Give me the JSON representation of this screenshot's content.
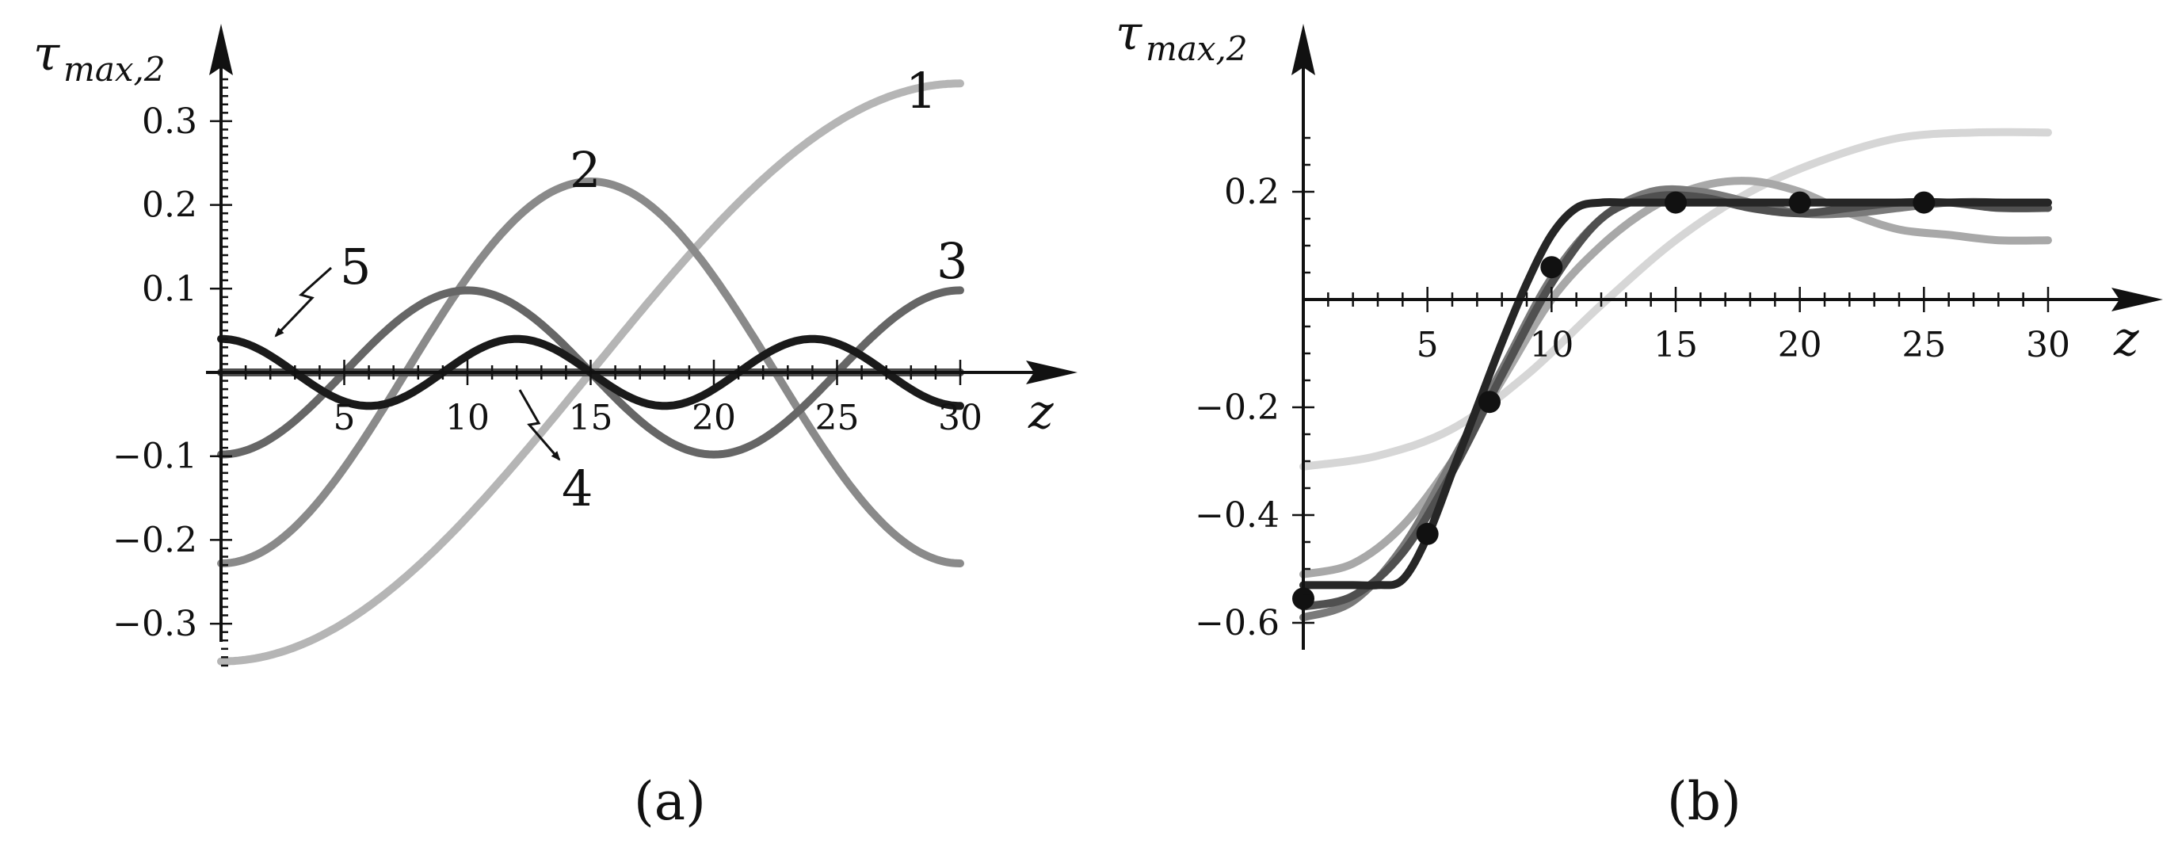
{
  "chart_data": [
    {
      "id": "a",
      "type": "line",
      "caption": "(a)",
      "ylabel": "τ",
      "ylabel_sub": "max,2",
      "xlabel": "z",
      "xlim": [
        0,
        30
      ],
      "ylim": [
        -0.35,
        0.35
      ],
      "x_ticks": [
        "5",
        "10",
        "15",
        "20",
        "25",
        "30"
      ],
      "y_ticks": [
        "0.3",
        "0.2",
        "0.1",
        "−0.1",
        "−0.2",
        "−0.3"
      ],
      "y_tick_values": [
        0.3,
        0.2,
        0.1,
        -0.1,
        -0.2,
        -0.3
      ],
      "x_tick_values": [
        5,
        10,
        15,
        20,
        25,
        30
      ],
      "series": [
        {
          "name": "1",
          "color": "#b5b5b5",
          "amplitude": -0.345,
          "cycles": 0.5,
          "phase": 0
        },
        {
          "name": "2",
          "color": "#8a8a8a",
          "amplitude": -0.228,
          "cycles": 1.0,
          "phase": 0
        },
        {
          "name": "3",
          "color": "#666666",
          "amplitude": -0.098,
          "cycles": 1.5,
          "phase": 0
        },
        {
          "name": "4",
          "color": "#4d4d4d",
          "amplitude": 0.0,
          "cycles": 2.0,
          "phase": 0
        },
        {
          "name": "5",
          "color": "#1a1a1a",
          "amplitude": 0.04,
          "cycles": 2.5,
          "phase": 0
        }
      ],
      "annotations": [
        "1",
        "2",
        "3",
        "4",
        "5"
      ]
    },
    {
      "id": "b",
      "type": "line",
      "caption": "(b)",
      "ylabel": "τ",
      "ylabel_sub": "max,2",
      "xlabel": "z",
      "xlim": [
        0,
        30
      ],
      "ylim": [
        -0.6,
        0.35
      ],
      "x_ticks": [
        "5",
        "10",
        "15",
        "20",
        "25",
        "30"
      ],
      "y_ticks": [
        "0.2",
        "−0.2",
        "−0.4",
        "−0.6"
      ],
      "y_tick_values": [
        0.2,
        -0.2,
        -0.4,
        -0.6
      ],
      "x_tick_values": [
        5,
        10,
        15,
        20,
        25,
        30
      ],
      "series": [
        {
          "color": "#d6d6d6",
          "x": [
            0,
            3,
            6,
            9,
            12,
            15,
            18,
            21,
            24,
            27,
            30
          ],
          "y": [
            -0.31,
            -0.29,
            -0.24,
            -0.14,
            -0.01,
            0.11,
            0.2,
            0.26,
            0.3,
            0.31,
            0.31
          ]
        },
        {
          "color": "#a8a8a8",
          "x": [
            0,
            2,
            4,
            6,
            8,
            10,
            12,
            14,
            16,
            18,
            20,
            22,
            24,
            26,
            28,
            30
          ],
          "y": [
            -0.51,
            -0.49,
            -0.42,
            -0.3,
            -0.15,
            0.0,
            0.1,
            0.17,
            0.21,
            0.22,
            0.2,
            0.16,
            0.13,
            0.12,
            0.11,
            0.11
          ]
        },
        {
          "color": "#7a7a7a",
          "x": [
            0,
            2,
            4,
            6,
            8,
            10,
            12,
            14,
            16,
            18,
            20,
            22,
            24,
            26,
            28,
            30
          ],
          "y": [
            -0.59,
            -0.56,
            -0.46,
            -0.3,
            -0.13,
            0.04,
            0.15,
            0.2,
            0.2,
            0.18,
            0.16,
            0.16,
            0.17,
            0.18,
            0.18,
            0.17
          ]
        },
        {
          "color": "#505050",
          "x": [
            0,
            2,
            4,
            6,
            8,
            10,
            12,
            14,
            16,
            18,
            20,
            22,
            24,
            26,
            28,
            30
          ],
          "y": [
            -0.57,
            -0.55,
            -0.47,
            -0.32,
            -0.14,
            0.03,
            0.15,
            0.19,
            0.19,
            0.17,
            0.16,
            0.17,
            0.18,
            0.18,
            0.17,
            0.17
          ]
        },
        {
          "color": "#262626",
          "x": [
            0,
            1,
            2,
            3,
            4,
            5,
            6,
            7,
            8,
            9,
            10,
            11,
            12,
            13,
            15,
            18,
            21,
            24,
            27,
            30
          ],
          "y": [
            -0.53,
            -0.53,
            -0.53,
            -0.53,
            -0.52,
            -0.44,
            -0.32,
            -0.2,
            -0.08,
            0.03,
            0.12,
            0.17,
            0.18,
            0.18,
            0.18,
            0.18,
            0.18,
            0.18,
            0.18,
            0.18
          ]
        }
      ],
      "points": {
        "x": [
          0,
          5,
          7.5,
          10,
          15,
          20,
          25
        ],
        "y": [
          -0.555,
          -0.435,
          -0.19,
          0.06,
          0.18,
          0.18,
          0.18
        ]
      }
    }
  ]
}
